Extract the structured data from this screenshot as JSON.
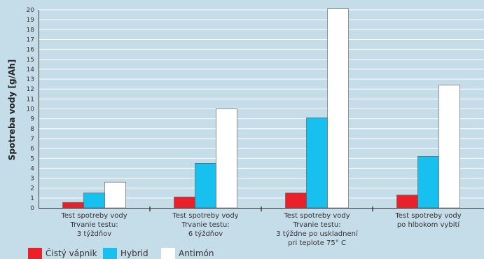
{
  "chart_data": {
    "type": "bar",
    "ylabel": "Spotreba vody [g/Ah]",
    "ylim": [
      0,
      20
    ],
    "yticks": [
      0,
      1,
      2,
      3,
      4,
      5,
      6,
      7,
      8,
      9,
      10,
      11,
      12,
      13,
      14,
      15,
      16,
      17,
      18,
      19,
      20
    ],
    "grid": true,
    "legend_position": "bottom-left",
    "categories": [
      [
        "Test spotreby vody",
        "Trvanie testu:",
        "3 týždňov"
      ],
      [
        "Test spotreby vody",
        "Trvanie testu:",
        "6 týždňov"
      ],
      [
        "Test spotreby vody",
        "Trvanie testu:",
        "3 týždne po uskladnení",
        "pri teplote 75° C"
      ],
      [
        "Test spotreby vody",
        "po hlbokom vybití"
      ]
    ],
    "series": [
      {
        "name": "Čistý vápnik",
        "color": "#e8212b",
        "values": [
          0.55,
          1.1,
          1.5,
          1.3
        ]
      },
      {
        "name": "Hybrid",
        "color": "#17c0ee",
        "values": [
          1.5,
          4.5,
          9.1,
          5.2
        ]
      },
      {
        "name": "Antimón",
        "color": "#ffffff",
        "values": [
          2.6,
          10.0,
          20.1,
          12.4
        ]
      }
    ]
  }
}
